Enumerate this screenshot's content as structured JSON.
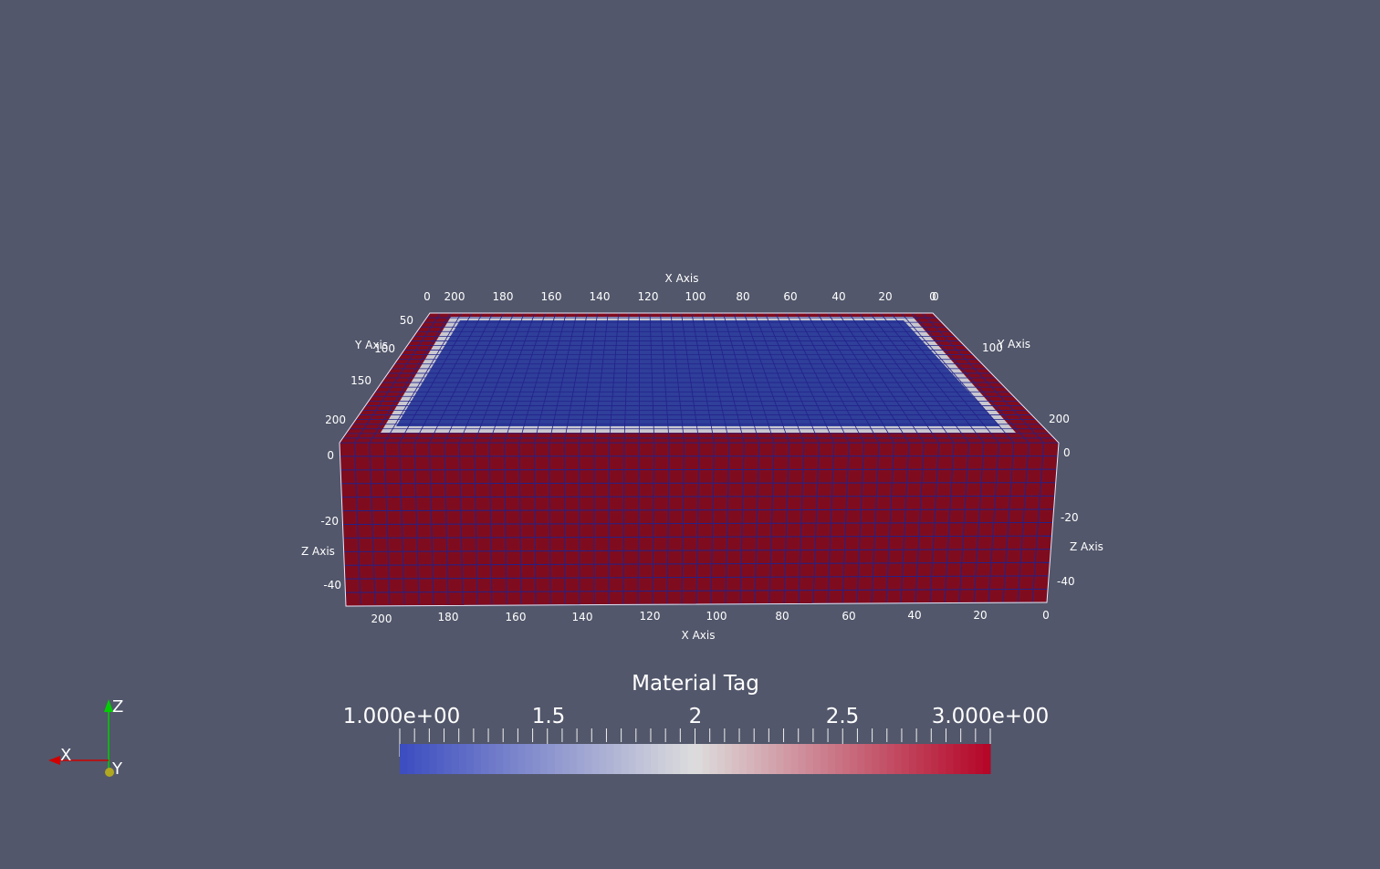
{
  "render": {
    "background": "#52576b",
    "surface_color": "#7f0c1e",
    "top_color": "#2b3b95",
    "grid_color": "#23228a",
    "edge_color": "#e8e8f8"
  },
  "axes": {
    "x_title_top": "X Axis",
    "x_title_bottom": "X Axis",
    "y_title_left": "Y Axis",
    "y_title_right": "Y Axis",
    "z_title_left": "Z Axis",
    "z_title_right": "Z Axis",
    "top_x_ticks": [
      "0",
      "200",
      "180",
      "160",
      "140",
      "120",
      "100",
      "80",
      "60",
      "40",
      "20",
      "0",
      "0"
    ],
    "bottom_x_ticks": [
      "200",
      "180",
      "160",
      "140",
      "120",
      "100",
      "80",
      "60",
      "40",
      "20",
      "0"
    ],
    "left_y_ticks": [
      "50",
      "100",
      "150",
      "200"
    ],
    "right_y_ticks": [
      "100",
      "200"
    ],
    "left_z_ticks": [
      "0",
      "-20",
      "-40"
    ],
    "right_z_ticks": [
      "0",
      "-20",
      "-40"
    ]
  },
  "colorbar": {
    "title": "Material Tag",
    "labels": [
      "1.000e+00",
      "1.5",
      "2",
      "2.5",
      "3.000e+00"
    ],
    "range": [
      1,
      3
    ],
    "colors": [
      "#3b4cc0",
      "#dddddd",
      "#b40426"
    ]
  },
  "orientation": {
    "z_label": "Z",
    "x_label": "X",
    "y_label": "Y",
    "z_color": "#00d000",
    "x_color": "#d00000",
    "y_color": "#c8c820"
  }
}
